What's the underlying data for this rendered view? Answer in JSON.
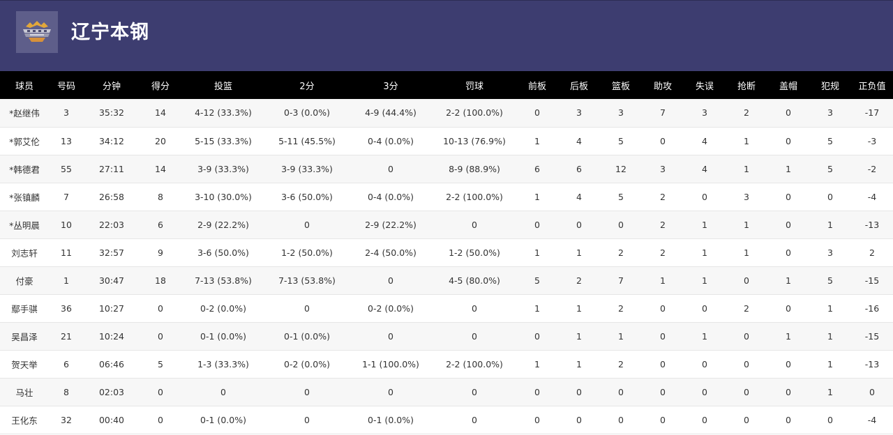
{
  "team": {
    "name": "辽宁本钢",
    "logo_icon": "team-logo-icon"
  },
  "table": {
    "headers": [
      "球员",
      "号码",
      "分钟",
      "得分",
      "投篮",
      "2分",
      "3分",
      "罚球",
      "前板",
      "后板",
      "篮板",
      "助攻",
      "失误",
      "抢断",
      "盖帽",
      "犯规",
      "正负值"
    ],
    "rows": [
      [
        "*赵继伟",
        "3",
        "35:32",
        "14",
        "4-12 (33.3%)",
        "0-3 (0.0%)",
        "4-9 (44.4%)",
        "2-2 (100.0%)",
        "0",
        "3",
        "3",
        "7",
        "3",
        "2",
        "0",
        "3",
        "-17"
      ],
      [
        "*郭艾伦",
        "13",
        "34:12",
        "20",
        "5-15 (33.3%)",
        "5-11 (45.5%)",
        "0-4 (0.0%)",
        "10-13 (76.9%)",
        "1",
        "4",
        "5",
        "0",
        "4",
        "1",
        "0",
        "5",
        "-3"
      ],
      [
        "*韩德君",
        "55",
        "27:11",
        "14",
        "3-9 (33.3%)",
        "3-9 (33.3%)",
        "0",
        "8-9 (88.9%)",
        "6",
        "6",
        "12",
        "3",
        "4",
        "1",
        "1",
        "5",
        "-2"
      ],
      [
        "*张镇麟",
        "7",
        "26:58",
        "8",
        "3-10 (30.0%)",
        "3-6 (50.0%)",
        "0-4 (0.0%)",
        "2-2 (100.0%)",
        "1",
        "4",
        "5",
        "2",
        "0",
        "3",
        "0",
        "0",
        "-4"
      ],
      [
        "*丛明晨",
        "10",
        "22:03",
        "6",
        "2-9 (22.2%)",
        "0",
        "2-9 (22.2%)",
        "0",
        "0",
        "0",
        "0",
        "2",
        "1",
        "1",
        "0",
        "1",
        "-13"
      ],
      [
        "刘志轩",
        "11",
        "32:57",
        "9",
        "3-6 (50.0%)",
        "1-2 (50.0%)",
        "2-4 (50.0%)",
        "1-2 (50.0%)",
        "1",
        "1",
        "2",
        "2",
        "1",
        "1",
        "0",
        "3",
        "2"
      ],
      [
        "付豪",
        "1",
        "30:47",
        "18",
        "7-13 (53.8%)",
        "7-13 (53.8%)",
        "0",
        "4-5 (80.0%)",
        "5",
        "2",
        "7",
        "1",
        "1",
        "0",
        "1",
        "5",
        "-15"
      ],
      [
        "鄢手骐",
        "36",
        "10:27",
        "0",
        "0-2 (0.0%)",
        "0",
        "0-2 (0.0%)",
        "0",
        "1",
        "1",
        "2",
        "0",
        "0",
        "2",
        "0",
        "1",
        "-16"
      ],
      [
        "吴昌泽",
        "21",
        "10:24",
        "0",
        "0-1 (0.0%)",
        "0-1 (0.0%)",
        "0",
        "0",
        "0",
        "1",
        "1",
        "0",
        "1",
        "0",
        "1",
        "1",
        "-15"
      ],
      [
        "贺天举",
        "6",
        "06:46",
        "5",
        "1-3 (33.3%)",
        "0-2 (0.0%)",
        "1-1 (100.0%)",
        "2-2 (100.0%)",
        "1",
        "1",
        "2",
        "0",
        "0",
        "0",
        "0",
        "1",
        "-13"
      ],
      [
        "马壮",
        "8",
        "02:03",
        "0",
        "0",
        "0",
        "0",
        "0",
        "0",
        "0",
        "0",
        "0",
        "0",
        "0",
        "0",
        "1",
        "0"
      ],
      [
        "王化东",
        "32",
        "00:40",
        "0",
        "0-1 (0.0%)",
        "0",
        "0-1 (0.0%)",
        "0",
        "0",
        "0",
        "0",
        "0",
        "0",
        "0",
        "0",
        "0",
        "-4"
      ]
    ]
  }
}
